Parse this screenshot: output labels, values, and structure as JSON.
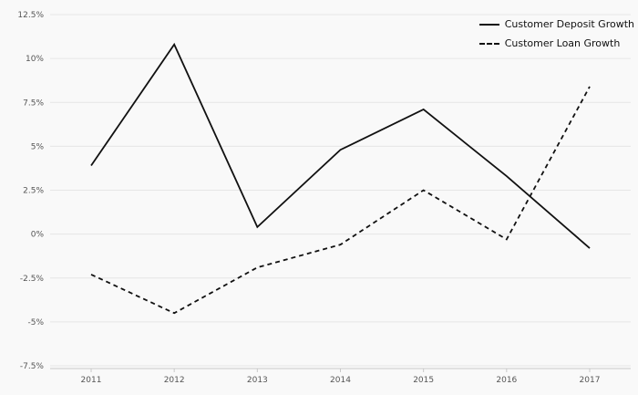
{
  "chart_data": {
    "type": "line",
    "title": "",
    "xlabel": "",
    "ylabel": "",
    "categories": [
      "2011",
      "2012",
      "2013",
      "2014",
      "2015",
      "2016",
      "2017"
    ],
    "series": [
      {
        "name": "Customer Deposit Growth",
        "style": "solid",
        "values": [
          3.9,
          10.8,
          0.4,
          4.8,
          7.1,
          3.3,
          -0.8
        ]
      },
      {
        "name": "Customer Loan Growth",
        "style": "dashed",
        "values": [
          -2.3,
          -4.5,
          -1.9,
          -0.6,
          2.5,
          -0.3,
          8.4
        ]
      }
    ],
    "ylim": [
      -7.5,
      12.5
    ],
    "yticks": [
      12.5,
      10,
      7.5,
      5,
      2.5,
      0,
      -2.5,
      -5,
      -7.5
    ],
    "ytick_labels": [
      "12.5%",
      "10%",
      "7.5%",
      "5%",
      "2.5%",
      "0%",
      "-2.5%",
      "-5%",
      "-7.5%"
    ],
    "grid": true,
    "legend_position": "top-right",
    "colors": {
      "line": "#111111",
      "background": "#f9f9f9",
      "gridline": "#e6e6e6",
      "axis": "#c9c9c9",
      "tick_text": "#555555"
    }
  }
}
